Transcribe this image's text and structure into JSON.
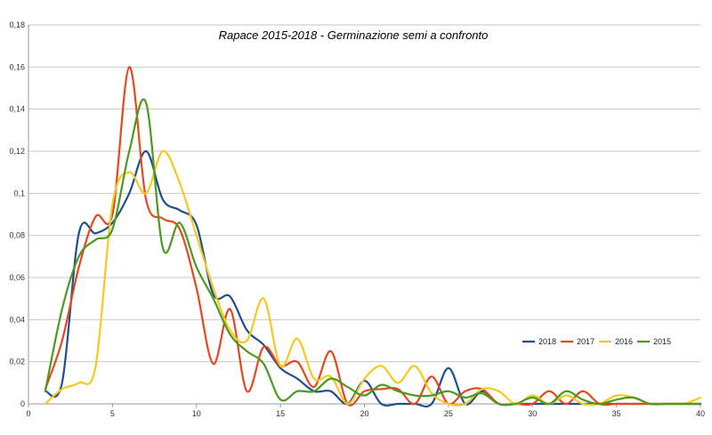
{
  "chart_data": {
    "type": "line",
    "title": "Rapace 2015-2018 -  Germinazione semi a confronto",
    "xlabel": "",
    "ylabel": "",
    "xlim": [
      0,
      40
    ],
    "ylim": [
      0,
      0.18
    ],
    "xticks": [
      0,
      5,
      10,
      15,
      20,
      25,
      30,
      35,
      40
    ],
    "xtick_labels": [
      "0",
      "5",
      "10",
      "15",
      "20",
      "25",
      "30",
      "35",
      "40"
    ],
    "yticks": [
      0,
      0.02,
      0.04,
      0.06,
      0.08,
      0.1,
      0.12,
      0.14,
      0.16,
      0.18
    ],
    "ytick_labels": [
      "0",
      "0,02",
      "0,04",
      "0,06",
      "0,08",
      "0,1",
      "0,12",
      "0,14",
      "0,16",
      "0,18"
    ],
    "grid": "horizontal",
    "legend_position": "right",
    "smooth": true,
    "series": [
      {
        "name": "2018",
        "color": "#1f4e8c",
        "x": [
          1,
          2,
          3,
          4,
          5,
          6,
          7,
          8,
          9,
          10,
          11,
          12,
          13,
          14,
          15,
          16,
          17,
          18,
          19,
          20,
          21,
          22,
          23,
          24,
          25,
          26,
          27,
          28,
          29,
          30,
          31,
          32,
          33,
          34,
          35,
          36,
          37,
          38,
          39,
          40
        ],
        "y": [
          0.006,
          0.01,
          0.081,
          0.081,
          0.086,
          0.1,
          0.12,
          0.097,
          0.092,
          0.085,
          0.052,
          0.051,
          0.035,
          0.028,
          0.017,
          0.012,
          0.006,
          0.006,
          0.0,
          0.011,
          0.0,
          0.0,
          0.0,
          0.0,
          0.017,
          0.0,
          0.006,
          0.0,
          0.0,
          0.0,
          0.0,
          0.0,
          0.0,
          0.0,
          0.0,
          0.0,
          0.0,
          0.0,
          0.0,
          0.0
        ]
      },
      {
        "name": "2017",
        "color": "#e8461e",
        "x": [
          1,
          2,
          3,
          4,
          5,
          6,
          7,
          8,
          9,
          10,
          11,
          12,
          13,
          14,
          15,
          16,
          17,
          18,
          19,
          20,
          21,
          22,
          23,
          24,
          25,
          26,
          27,
          28,
          29,
          30,
          31,
          32,
          33,
          34,
          35,
          36,
          37,
          38,
          39,
          40
        ],
        "y": [
          0.007,
          0.03,
          0.065,
          0.089,
          0.09,
          0.16,
          0.097,
          0.088,
          0.083,
          0.055,
          0.019,
          0.045,
          0.006,
          0.027,
          0.018,
          0.02,
          0.008,
          0.025,
          0.0,
          0.006,
          0.007,
          0.007,
          0.0,
          0.013,
          0.0,
          0.006,
          0.007,
          0.0,
          0.0,
          0.0,
          0.006,
          0.0,
          0.006,
          0.0,
          0.0,
          0.0,
          0.0,
          0.0,
          0.0,
          0.0
        ]
      },
      {
        "name": "2016",
        "color": "#f7c81e",
        "x": [
          1,
          2,
          3,
          4,
          5,
          6,
          7,
          8,
          9,
          10,
          11,
          12,
          13,
          14,
          15,
          16,
          17,
          18,
          19,
          20,
          21,
          22,
          23,
          24,
          25,
          26,
          27,
          28,
          29,
          30,
          31,
          32,
          33,
          34,
          35,
          36,
          37,
          38,
          39,
          40
        ],
        "y": [
          0.0,
          0.007,
          0.01,
          0.018,
          0.095,
          0.11,
          0.1,
          0.12,
          0.105,
          0.08,
          0.055,
          0.035,
          0.03,
          0.05,
          0.018,
          0.031,
          0.012,
          0.013,
          0.0,
          0.012,
          0.018,
          0.01,
          0.018,
          0.005,
          0.0,
          0.0,
          0.007,
          0.006,
          0.0,
          0.004,
          0.0,
          0.004,
          0.0,
          0.0,
          0.004,
          0.003,
          0.0,
          0.0,
          0.0,
          0.003
        ]
      },
      {
        "name": "2015",
        "color": "#4a9a1e",
        "x": [
          1,
          2,
          3,
          4,
          5,
          6,
          7,
          8,
          9,
          10,
          11,
          12,
          13,
          14,
          15,
          16,
          17,
          18,
          19,
          20,
          21,
          22,
          23,
          24,
          25,
          26,
          27,
          28,
          29,
          30,
          31,
          32,
          33,
          34,
          35,
          36,
          37,
          38,
          39,
          40
        ],
        "y": [
          0.006,
          0.045,
          0.07,
          0.078,
          0.083,
          0.12,
          0.143,
          0.074,
          0.086,
          0.065,
          0.05,
          0.033,
          0.025,
          0.019,
          0.002,
          0.006,
          0.006,
          0.012,
          0.008,
          0.004,
          0.009,
          0.006,
          0.004,
          0.004,
          0.006,
          0.003,
          0.005,
          0.0,
          0.0,
          0.003,
          0.0,
          0.006,
          0.002,
          0.0,
          0.002,
          0.003,
          0.0,
          0.0,
          0.0,
          0.0
        ]
      }
    ]
  }
}
